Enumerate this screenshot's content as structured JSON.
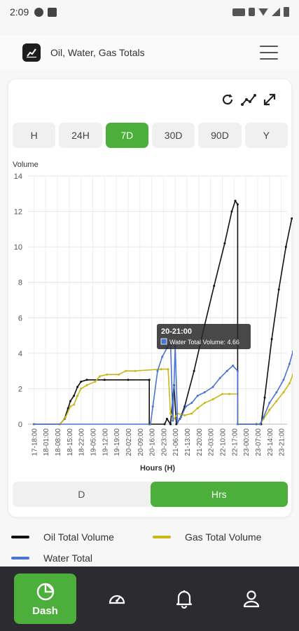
{
  "status": {
    "time": "2:09"
  },
  "header": {
    "title": "Oil, Water, Gas Totals"
  },
  "range_tabs": [
    "H",
    "24H",
    "7D",
    "30D",
    "90D",
    "Y"
  ],
  "active_range": "7D",
  "toggle": {
    "left": "D",
    "right": "Hrs",
    "active": "Hrs"
  },
  "legend": {
    "oil": "Oil Total Volume",
    "gas": "Gas Total Volume",
    "water": "Water Total"
  },
  "tooltip": {
    "title": "20-21:00",
    "text": "Water Total Volume: 4.66"
  },
  "nav": {
    "dash": "Dash"
  },
  "colors": {
    "accent": "#4cae3b",
    "oil": "#111111",
    "gas": "#c9b817",
    "water": "#4a74d3"
  },
  "chart_data": {
    "type": "line",
    "ylabel": "Volume",
    "xlabel": "Hours (H)",
    "ylim": [
      0,
      14
    ],
    "yticks": [
      0,
      2,
      4,
      6,
      8,
      10,
      12,
      14
    ],
    "grid": true,
    "xticks": [
      "17-18:00",
      "18-01:00",
      "18-08:00",
      "18-15:00",
      "18-22:00",
      "19-05:00",
      "19-12:00",
      "19-19:00",
      "20-02:00",
      "20-09:00",
      "20-16:00",
      "20-23:00",
      "21-06:00",
      "21-13:00",
      "21-20:00",
      "22-03:00",
      "22-10:00",
      "22-17:00",
      "23-00:00",
      "23-07:00",
      "23-14:00",
      "23-21:00"
    ],
    "series": [
      {
        "name": "Oil Total Volume",
        "points": [
          [
            0,
            0
          ],
          [
            2.2,
            0
          ],
          [
            2.6,
            0.3
          ],
          [
            2.9,
            0.9
          ],
          [
            3.1,
            1.3
          ],
          [
            3.4,
            1.6
          ],
          [
            3.7,
            2.1
          ],
          [
            4.0,
            2.4
          ],
          [
            4.5,
            2.5
          ],
          [
            6,
            2.5
          ],
          [
            8,
            2.5
          ],
          [
            9.8,
            2.5
          ],
          [
            9.8,
            0
          ],
          [
            11.1,
            0
          ],
          [
            11.3,
            0.3
          ],
          [
            11.6,
            0
          ],
          [
            11.9,
            2.2
          ],
          [
            12.1,
            0
          ],
          [
            12.4,
            0.3
          ],
          [
            12.8,
            1.0
          ],
          [
            13.6,
            3.0
          ],
          [
            14.5,
            5.6
          ],
          [
            15.3,
            7.8
          ],
          [
            16.2,
            10.2
          ],
          [
            16.8,
            12.0
          ],
          [
            17.1,
            12.6
          ],
          [
            17.3,
            12.4
          ],
          [
            17.3,
            0
          ],
          [
            18.9,
            0
          ],
          [
            19.3,
            0
          ],
          [
            19.6,
            1.5
          ],
          [
            20.2,
            4.8
          ],
          [
            20.8,
            7.6
          ],
          [
            21.4,
            10.0
          ],
          [
            21.9,
            11.6
          ]
        ]
      },
      {
        "name": "Gas Total Volume",
        "points": [
          [
            0,
            0
          ],
          [
            2.2,
            0
          ],
          [
            2.7,
            0.4
          ],
          [
            3.1,
            1.0
          ],
          [
            3.4,
            1.1
          ],
          [
            3.7,
            1.6
          ],
          [
            4.0,
            2.0
          ],
          [
            4.5,
            2.2
          ],
          [
            5.2,
            2.4
          ],
          [
            5.6,
            2.7
          ],
          [
            6.2,
            2.8
          ],
          [
            7.2,
            2.8
          ],
          [
            7.8,
            3.0
          ],
          [
            8.6,
            3.0
          ],
          [
            10.8,
            3.1
          ],
          [
            11.4,
            3.1
          ],
          [
            11.6,
            0.6
          ],
          [
            11.9,
            0.3
          ],
          [
            12.2,
            0.6
          ],
          [
            12.8,
            0.5
          ],
          [
            13.4,
            0.6
          ],
          [
            13.9,
            0.9
          ],
          [
            14.5,
            1.2
          ],
          [
            15.2,
            1.4
          ],
          [
            16,
            1.7
          ],
          [
            16.6,
            1.7
          ],
          [
            17.3,
            1.7
          ],
          [
            17.3,
            0
          ],
          [
            19.2,
            0
          ],
          [
            19.5,
            0.3
          ],
          [
            20.0,
            0.8
          ],
          [
            20.6,
            1.3
          ],
          [
            21.2,
            1.8
          ],
          [
            21.7,
            2.3
          ],
          [
            22.0,
            2.8
          ]
        ]
      },
      {
        "name": "Water Total Volume",
        "points": [
          [
            0,
            0
          ],
          [
            9.9,
            0
          ],
          [
            10.1,
            1.0
          ],
          [
            10.5,
            3.0
          ],
          [
            10.9,
            3.8
          ],
          [
            11.3,
            4.3
          ],
          [
            11.6,
            4.66
          ],
          [
            11.8,
            0.2
          ],
          [
            12.0,
            4.4
          ],
          [
            12.2,
            0.1
          ],
          [
            12.5,
            0.4
          ],
          [
            12.9,
            1.0
          ],
          [
            13.4,
            1.2
          ],
          [
            13.9,
            1.6
          ],
          [
            14.5,
            1.8
          ],
          [
            15.2,
            2.1
          ],
          [
            15.8,
            2.6
          ],
          [
            16.4,
            3.0
          ],
          [
            16.9,
            3.3
          ],
          [
            17.3,
            3.0
          ],
          [
            17.3,
            0
          ],
          [
            19.2,
            0
          ],
          [
            19.5,
            0.4
          ],
          [
            20.0,
            1.2
          ],
          [
            20.6,
            1.8
          ],
          [
            21.2,
            2.5
          ],
          [
            21.7,
            3.4
          ],
          [
            22.0,
            4.1
          ]
        ]
      }
    ]
  }
}
